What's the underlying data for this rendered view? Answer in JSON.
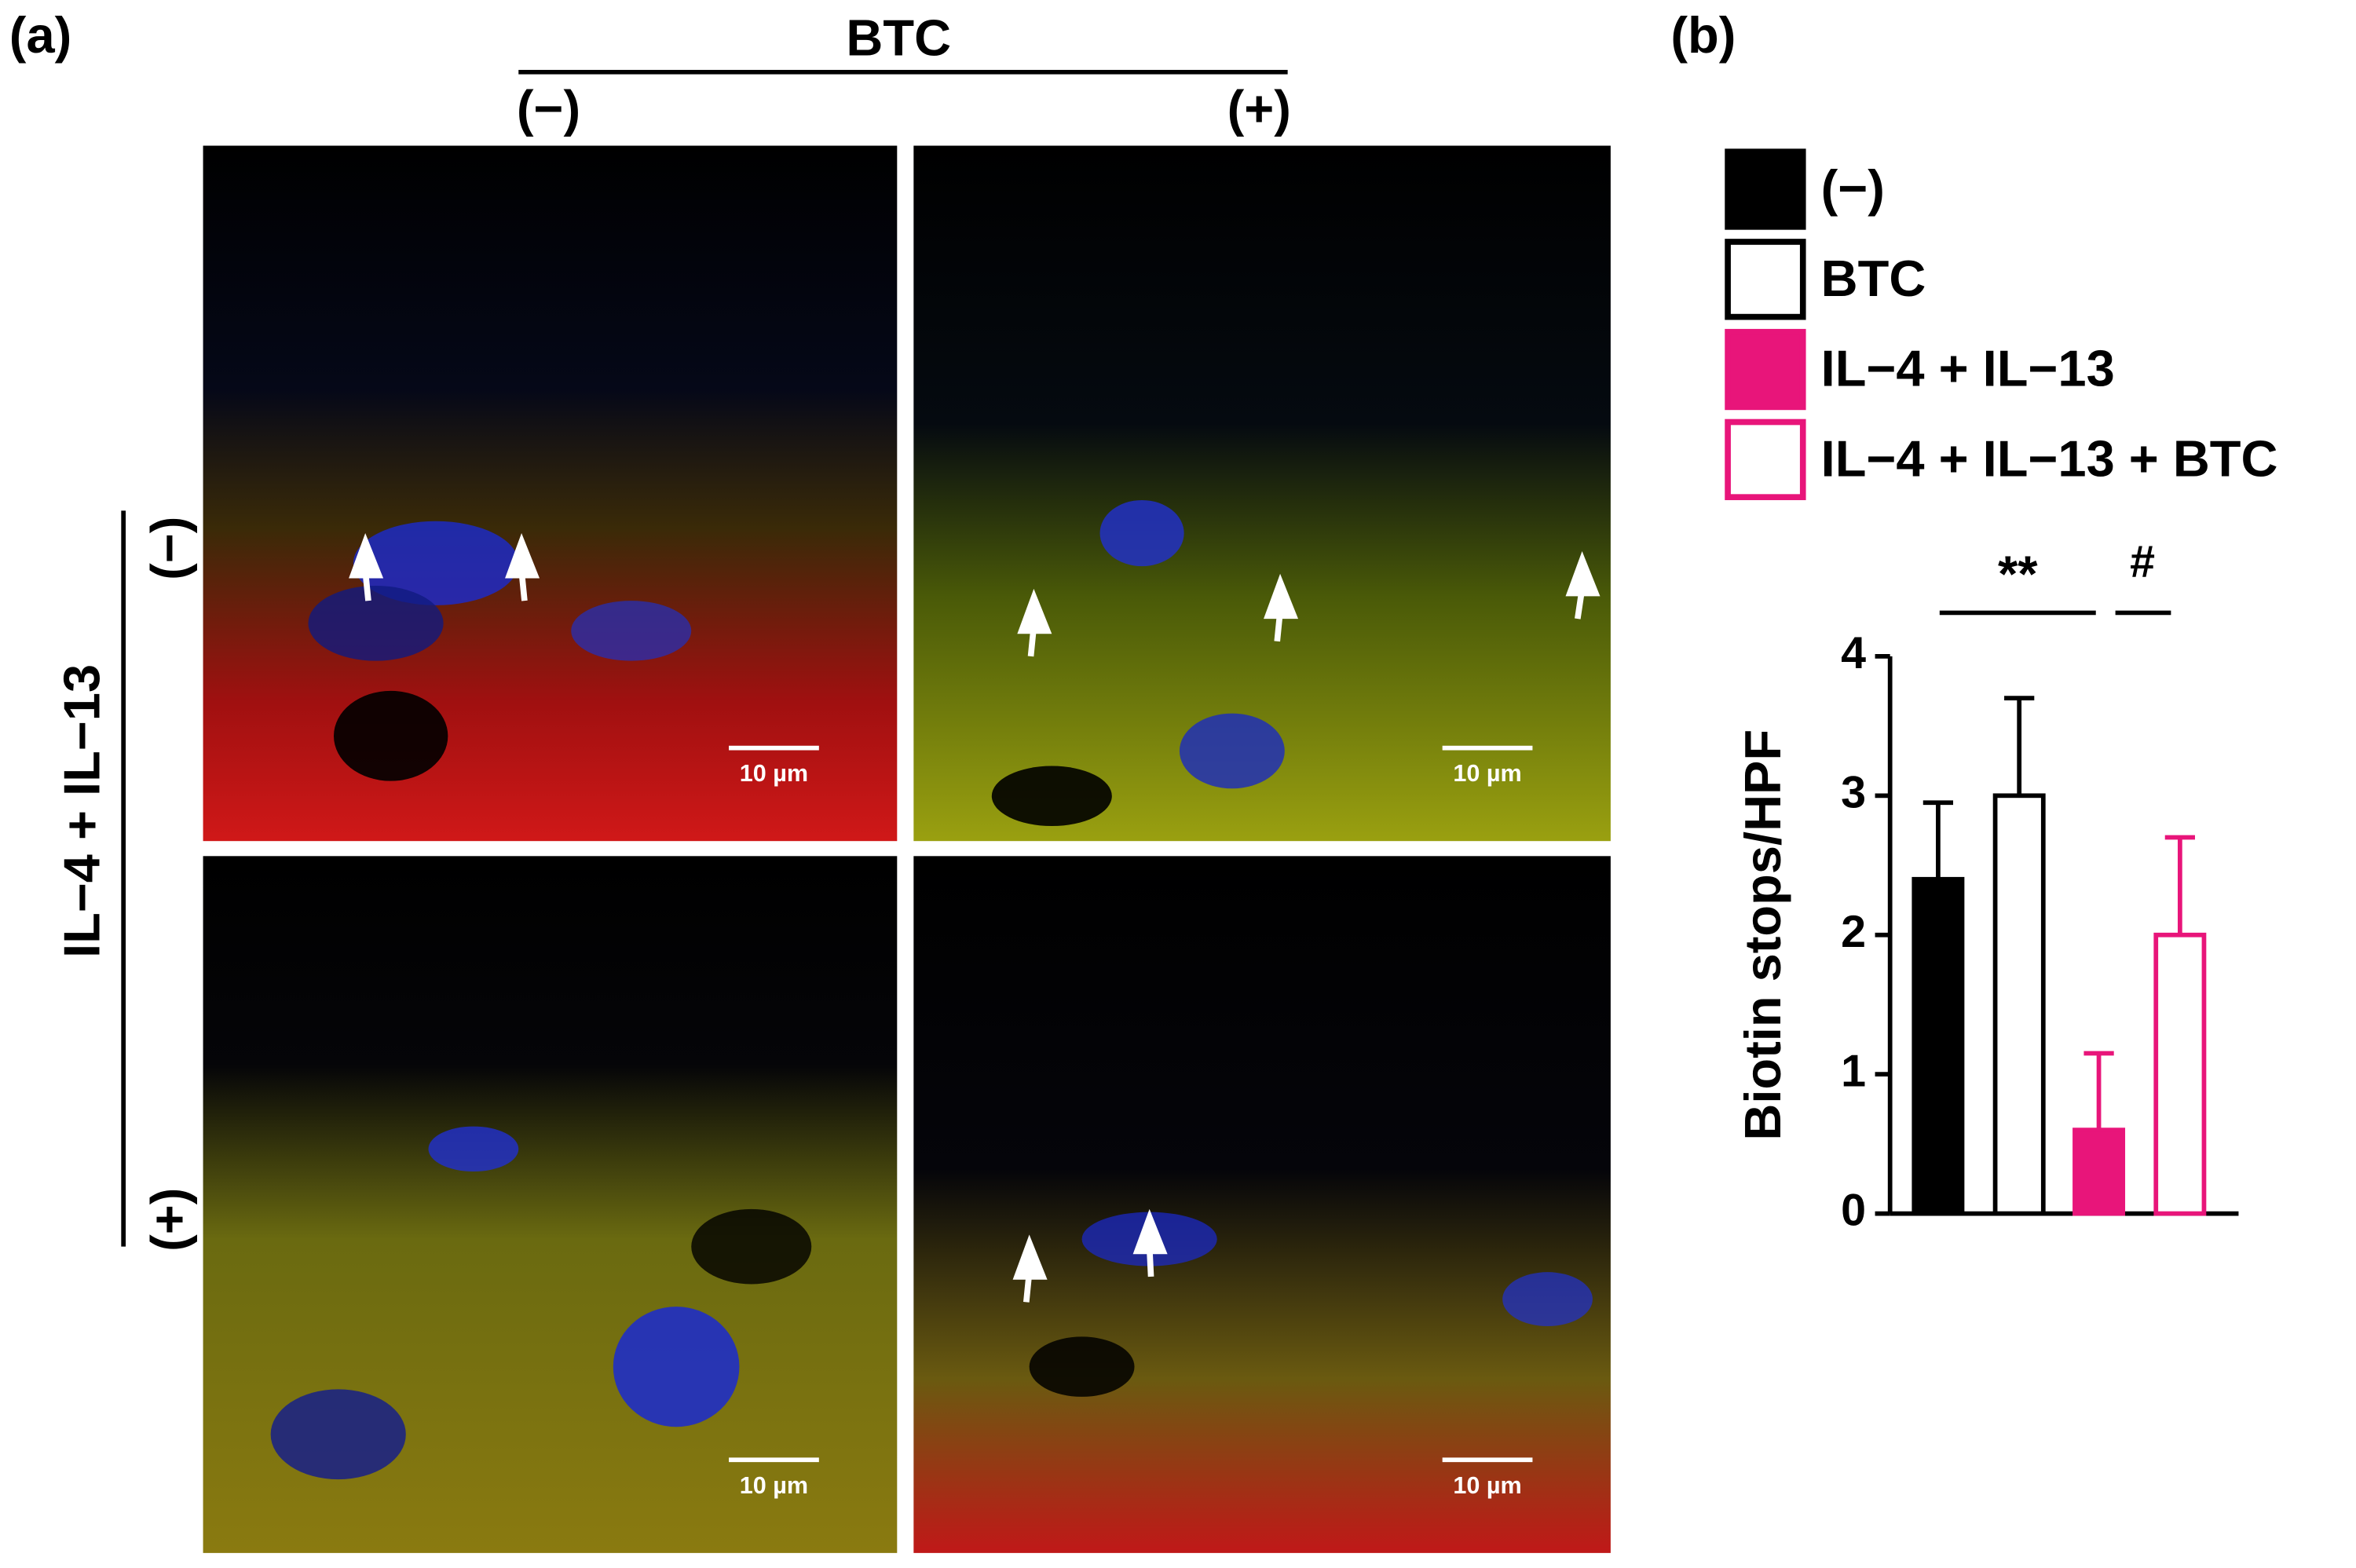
{
  "panel_a": {
    "label": "(a)",
    "column_header": "BTC",
    "columns": [
      "(−)",
      "(+)"
    ],
    "row_header": "IL−4 + IL−13",
    "rows": [
      "(−)",
      "(+)"
    ],
    "scale_bars": [
      "10 µm",
      "10 µm",
      "10 µm",
      "10 µm"
    ]
  },
  "chart_data": {
    "type": "bar",
    "panel_label": "(b)",
    "ylabel": "Biotin stops/HPF",
    "categories": [
      "(−)",
      "BTC",
      "IL−4 + IL−13",
      "IL−4 + IL−13 + BTC"
    ],
    "values": [
      2.4,
      3.0,
      0.6,
      2.0
    ],
    "errors": [
      0.55,
      0.7,
      0.55,
      0.7
    ],
    "colors": [
      "#000000",
      "#000000",
      "#e8157a",
      "#e8157a"
    ],
    "filled": [
      true,
      false,
      true,
      false
    ],
    "ylim": [
      0,
      4
    ],
    "yticks": [
      0,
      1,
      2,
      3,
      4
    ],
    "annotations": [
      "**",
      "#"
    ]
  }
}
